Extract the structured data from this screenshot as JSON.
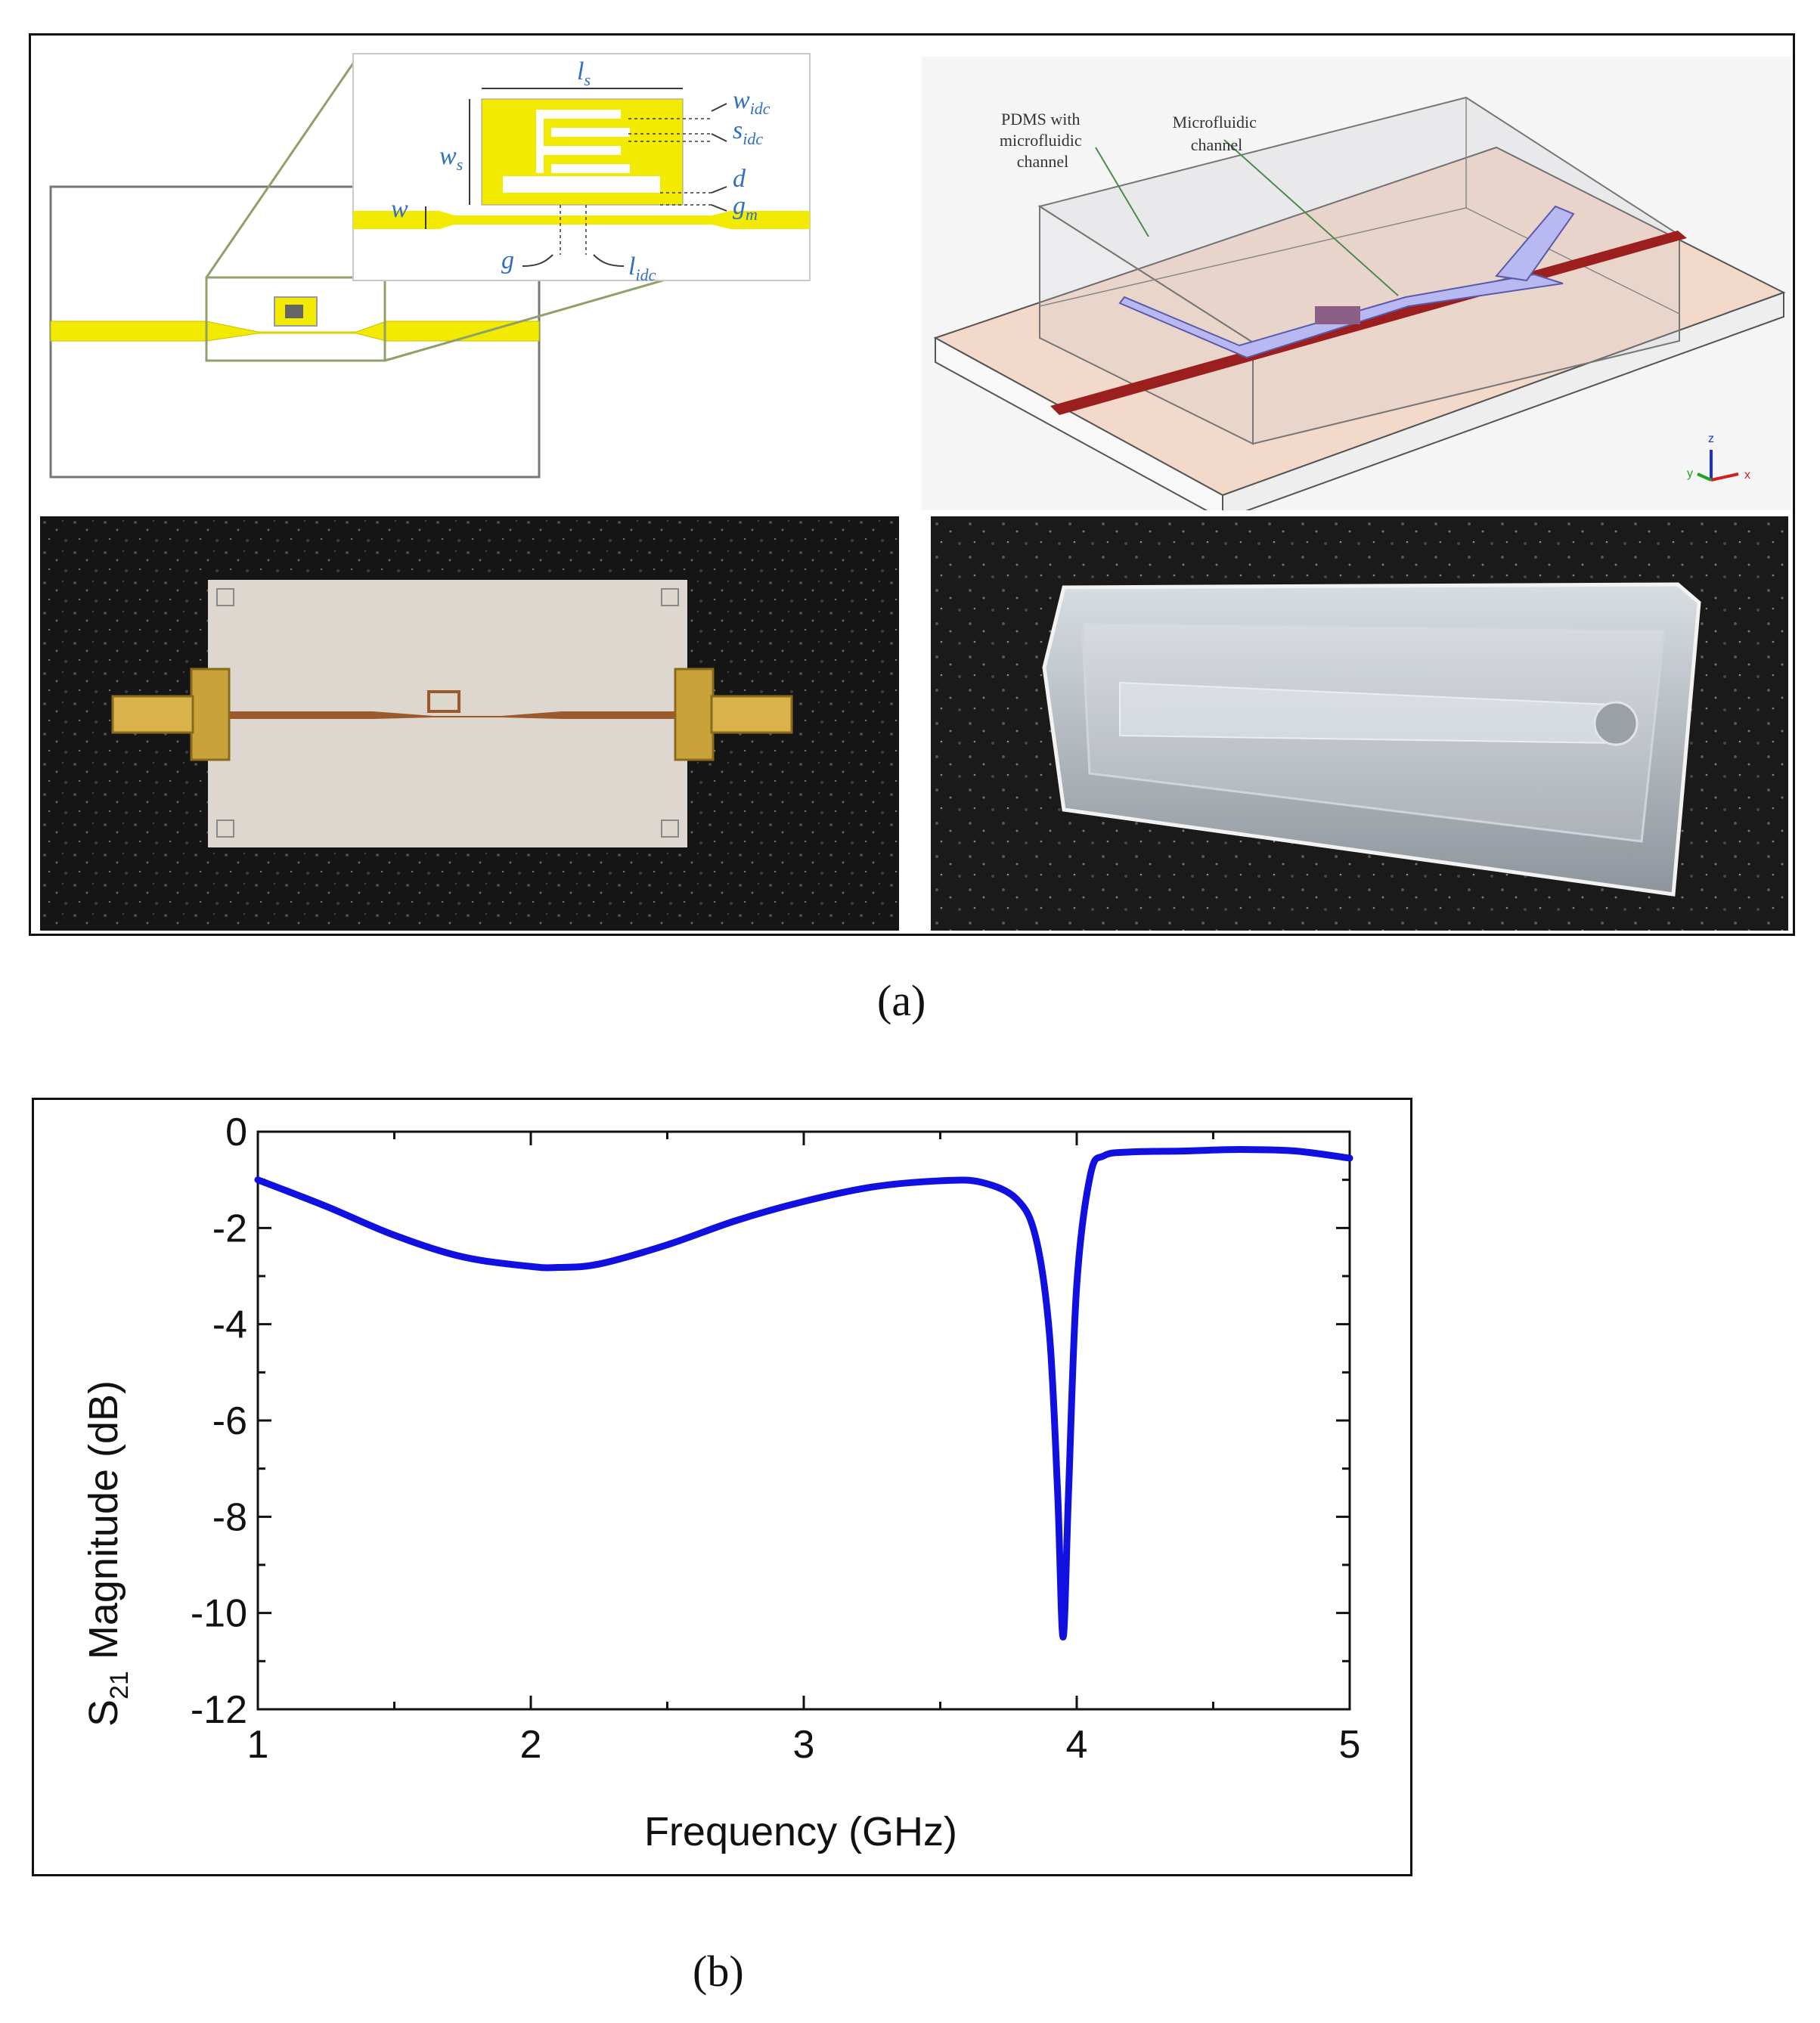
{
  "figure_a": {
    "caption": "(a)",
    "layout_labels": {
      "ls": "l",
      "ls_sub": "s",
      "ws": "w",
      "ws_sub": "s",
      "widc": "w",
      "widc_sub": "idc",
      "sidc": "s",
      "sidc_sub": "idc",
      "d": "d",
      "gm": "g",
      "gm_sub": "m",
      "w": "w",
      "g": "g",
      "lidc": "l",
      "lidc_sub": "idc"
    },
    "model_labels": {
      "pdms": [
        "PDMS with",
        "microfluidic",
        "channel"
      ],
      "channel": [
        "Microfluidic",
        "channel"
      ],
      "axes": {
        "z": "z",
        "y": "y",
        "x": "x"
      }
    }
  },
  "figure_b": {
    "caption": "(b)",
    "chart_data": {
      "type": "line",
      "title": "",
      "xlabel": "Frequency (GHz)",
      "ylabel_prefix": "S",
      "ylabel_sub": "21",
      "ylabel_suffix": " Magnitude (dB)",
      "xlim": [
        1,
        5
      ],
      "ylim": [
        -12,
        0
      ],
      "x_ticks": [
        "1",
        "2",
        "3",
        "4",
        "5"
      ],
      "y_ticks": [
        "0",
        "-2",
        "-4",
        "-6",
        "-8",
        "-10",
        "-12"
      ],
      "line_color": "#1010e0",
      "series": [
        {
          "x": [
            1.0,
            1.25,
            1.5,
            1.75,
            2.0,
            2.1,
            2.25,
            2.5,
            2.75,
            3.0,
            3.25,
            3.5,
            3.65,
            3.78,
            3.85,
            3.9,
            3.93,
            3.95,
            3.97,
            4.0,
            4.05,
            4.1,
            4.2,
            4.4,
            4.6,
            4.8,
            5.0
          ],
          "y": [
            -1.0,
            -1.55,
            -2.15,
            -2.6,
            -2.8,
            -2.82,
            -2.75,
            -2.35,
            -1.85,
            -1.45,
            -1.15,
            -1.02,
            -1.05,
            -1.4,
            -2.2,
            -4.2,
            -7.5,
            -10.5,
            -7.5,
            -3.2,
            -0.9,
            -0.5,
            -0.42,
            -0.4,
            -0.37,
            -0.4,
            -0.55
          ]
        }
      ]
    }
  }
}
